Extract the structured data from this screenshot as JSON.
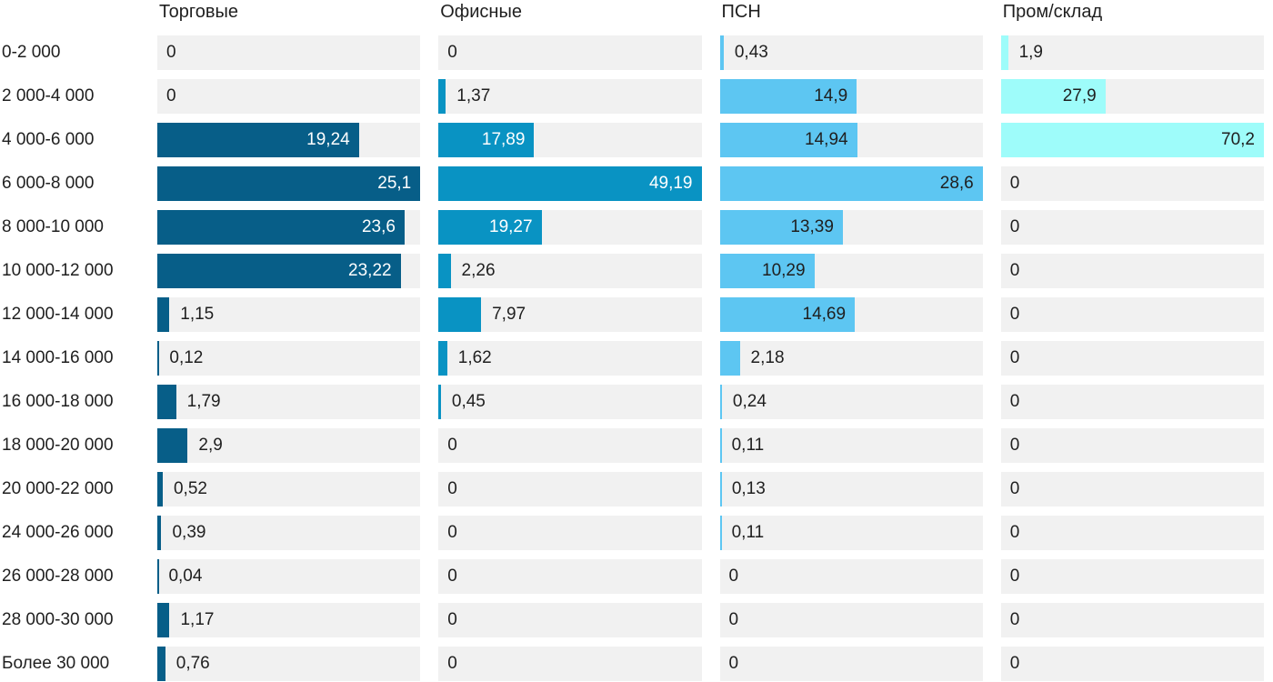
{
  "chart_data": {
    "type": "bar",
    "orientation": "horizontal",
    "title": "",
    "xlabel": "",
    "ylabel": "",
    "grid": false,
    "legend_position": "top-as-column-headers",
    "scaling": "each-column-scaled-to-its-own-max",
    "decimal_separator": ",",
    "track_color": "#f1f1f1",
    "text_color": "#1f1f1f",
    "categories": [
      "0-2 000",
      "2 000-4 000",
      "4 000-6 000",
      "6 000-8 000",
      "8 000-10 000",
      "10 000-12 000",
      "12 000-14 000",
      "14 000-16 000",
      "16 000-18 000",
      "18 000-20 000",
      "20 000-22 000",
      "24 000-26 000",
      "26 000-28 000",
      "28 000-30 000",
      "Более 30 000"
    ],
    "series": [
      {
        "name": "Торговые",
        "color": "#075e88",
        "inside_label_color": "#ffffff",
        "values": [
          0,
          0,
          19.24,
          25.1,
          23.6,
          23.22,
          1.15,
          0.12,
          1.79,
          2.9,
          0.52,
          0.39,
          0.04,
          1.17,
          0.76
        ]
      },
      {
        "name": "Офисные",
        "color": "#0993c3",
        "inside_label_color": "#ffffff",
        "values": [
          0,
          1.37,
          17.89,
          49.19,
          19.27,
          2.26,
          7.97,
          1.62,
          0.45,
          0,
          0,
          0,
          0,
          0,
          0
        ]
      },
      {
        "name": "ПСН",
        "color": "#5dc6f2",
        "inside_label_color": "#1f1f1f",
        "values": [
          0.43,
          14.9,
          14.94,
          28.6,
          13.39,
          10.29,
          14.69,
          2.18,
          0.24,
          0.11,
          0.13,
          0.11,
          0,
          0,
          0
        ]
      },
      {
        "name": "Пром/склад",
        "color": "#9efcfa",
        "inside_label_color": "#1f1f1f",
        "values": [
          1.9,
          27.9,
          70.2,
          0,
          0,
          0,
          0,
          0,
          0,
          0,
          0,
          0,
          0,
          0,
          0
        ]
      }
    ]
  }
}
